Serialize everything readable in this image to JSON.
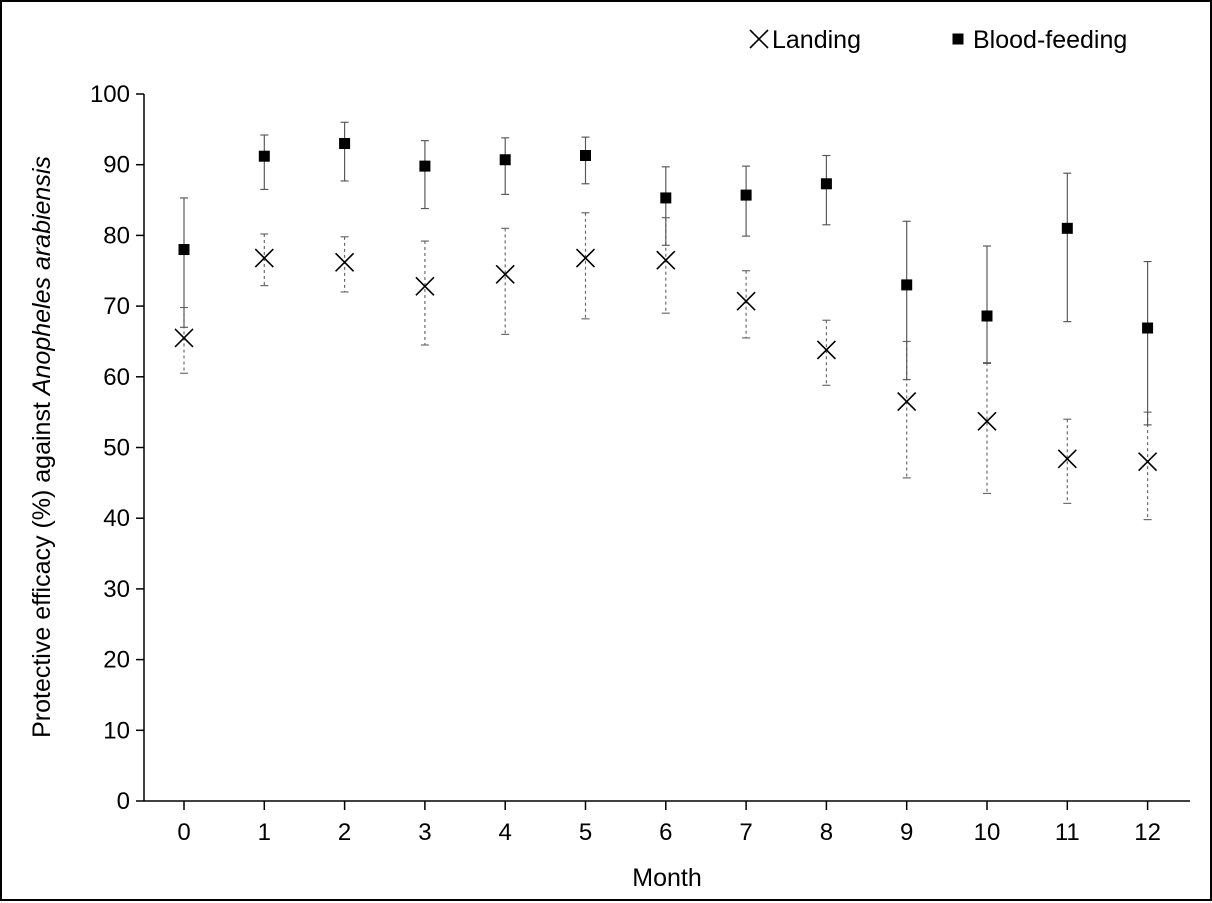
{
  "chart_data": {
    "type": "scatter",
    "title": "",
    "xlabel": "Month",
    "ylabel": {
      "prefix": "Protective efficacy (%) against ",
      "species": "Anopheles arabiensis"
    },
    "x": [
      0,
      1,
      2,
      3,
      4,
      5,
      6,
      7,
      8,
      9,
      10,
      11,
      12
    ],
    "xticks": [
      "0",
      "1",
      "2",
      "3",
      "4",
      "5",
      "6",
      "7",
      "8",
      "9",
      "10",
      "11",
      "12"
    ],
    "ylim": [
      0,
      100
    ],
    "yticks": [
      "0",
      "10",
      "20",
      "30",
      "40",
      "50",
      "60",
      "70",
      "80",
      "90",
      "100"
    ],
    "grid": false,
    "legend_position": "top-right",
    "series": [
      {
        "name": "Landing",
        "marker": "x",
        "error_bar_style": "dashed",
        "color": "#000000",
        "values": [
          65.5,
          76.8,
          76.2,
          72.8,
          74.5,
          76.8,
          76.5,
          70.7,
          63.8,
          56.5,
          53.7,
          48.4,
          48.0
        ],
        "lower": [
          60.5,
          72.9,
          72.0,
          64.5,
          66.0,
          68.2,
          69.0,
          65.5,
          58.8,
          45.7,
          43.5,
          42.1,
          39.8
        ],
        "upper": [
          69.8,
          80.2,
          79.8,
          79.2,
          81.0,
          83.2,
          82.5,
          75.0,
          68.0,
          65.0,
          62.0,
          54.0,
          55.0
        ]
      },
      {
        "name": "Blood-feeding",
        "marker": "square",
        "error_bar_style": "solid",
        "color": "#000000",
        "values": [
          78.0,
          91.2,
          93.0,
          89.8,
          90.7,
          91.3,
          85.3,
          85.7,
          87.3,
          73.0,
          68.6,
          81.0,
          66.9
        ],
        "lower": [
          67.0,
          86.5,
          87.7,
          83.8,
          85.8,
          87.3,
          78.6,
          79.9,
          81.5,
          59.6,
          61.9,
          67.8,
          53.2
        ],
        "upper": [
          85.3,
          94.2,
          96.0,
          93.4,
          93.8,
          93.9,
          89.7,
          89.8,
          91.3,
          82.0,
          78.5,
          88.8,
          76.3
        ]
      }
    ]
  }
}
